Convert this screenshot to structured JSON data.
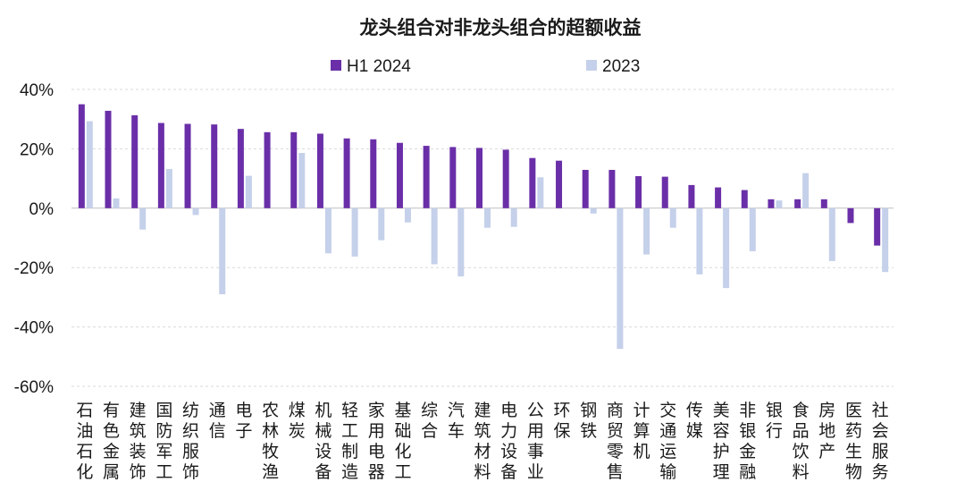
{
  "chart_data": {
    "type": "bar",
    "title": "龙头组合对非龙头组合的超额收益",
    "ylim": [
      -60,
      40
    ],
    "yticks": [
      40,
      20,
      0,
      -20,
      -40,
      -60
    ],
    "ytick_format": "%",
    "grid": true,
    "legend_position": "top-center",
    "categories": [
      "石油石化",
      "有色金属",
      "建筑装饰",
      "国防军工",
      "纺织服饰",
      "通信",
      "电子",
      "农林牧渔",
      "煤炭",
      "机械设备",
      "轻工制造",
      "家用电器",
      "基础化工",
      "综合",
      "汽车",
      "建筑材料",
      "电力设备",
      "公用事业",
      "环保",
      "钢铁",
      "商贸零售",
      "计算机",
      "交通运输",
      "传媒",
      "美容护理",
      "非银金融",
      "银行",
      "食品饮料",
      "房地产",
      "医药生物",
      "社会服务"
    ],
    "series": [
      {
        "name": "H1 2024",
        "color": "#6a2fa8",
        "values": [
          35,
          32.8,
          31.3,
          28.7,
          28.4,
          28.2,
          26.7,
          25.6,
          25.6,
          25.1,
          23.5,
          23.2,
          22,
          21,
          20.6,
          20.3,
          19.7,
          16.9,
          16,
          12.9,
          12.9,
          10.8,
          10.6,
          7.8,
          7,
          6.1,
          3,
          3,
          3,
          -5,
          -12.6
        ]
      },
      {
        "name": "2023",
        "color": "#c5d0ea",
        "values": [
          29.3,
          3.3,
          -7.2,
          13.2,
          -2.3,
          -29,
          10.9,
          0,
          18.6,
          -15.2,
          -16.3,
          -10.8,
          -4.8,
          -18.9,
          -23,
          -6.6,
          -6.3,
          10.4,
          0,
          -1.8,
          -47.4,
          -15.6,
          -6.6,
          -22.3,
          -26.9,
          -14.5,
          2.6,
          11.8,
          -17.8,
          0,
          -21.5
        ]
      }
    ]
  }
}
